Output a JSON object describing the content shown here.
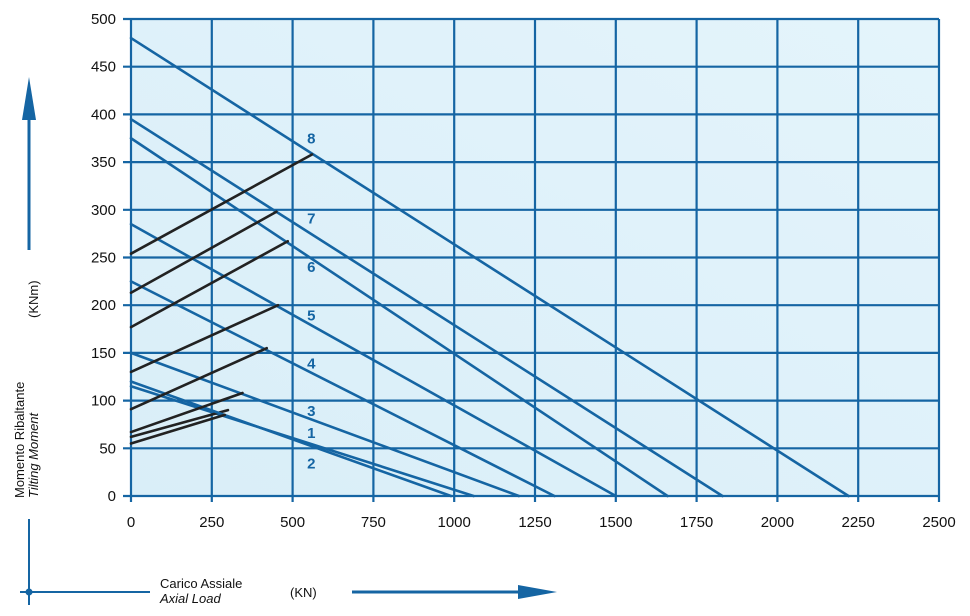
{
  "chart_data": {
    "type": "line",
    "title": "",
    "y_label_it": "Momento Ribaltante",
    "y_label_en": "Tilting Moment",
    "y_unit": "(KNm)",
    "x_label_it": "Carico Assiale",
    "x_label_en": "Axial Load",
    "x_unit": "(KN)",
    "xlim": [
      0,
      2500
    ],
    "ylim": [
      0,
      500
    ],
    "x_ticks": [
      0,
      250,
      500,
      750,
      1000,
      1250,
      1500,
      1750,
      2000,
      2250,
      2500
    ],
    "y_ticks": [
      0,
      50,
      100,
      150,
      200,
      250,
      300,
      350,
      400,
      450,
      500
    ],
    "grid": true,
    "colors": {
      "plot_bg": "#dff1f9",
      "line_blue": "#1565a3",
      "line_dark": "#222222",
      "axis_text": "#111111",
      "arrow": "#1565a3",
      "curve_label": "#1565a3"
    },
    "series_note": "each numbered curve: blue static limit line (y0 at x=0 to x-intercept) and dark operating line",
    "series": [
      {
        "name": "1",
        "blue": [
          [
            0,
            115
          ],
          [
            1060,
            0
          ]
        ],
        "dark": [
          [
            0,
            62
          ],
          [
            300,
            90
          ]
        ]
      },
      {
        "name": "2",
        "blue": [
          [
            0,
            120
          ],
          [
            990,
            0
          ]
        ],
        "dark": [
          [
            0,
            55
          ],
          [
            290,
            85
          ]
        ]
      },
      {
        "name": "3",
        "blue": [
          [
            0,
            150
          ],
          [
            1200,
            0
          ]
        ],
        "dark": [
          [
            0,
            67
          ],
          [
            345,
            108
          ]
        ]
      },
      {
        "name": "4",
        "blue": [
          [
            0,
            225
          ],
          [
            1310,
            0
          ]
        ],
        "dark": [
          [
            0,
            91
          ],
          [
            420,
            155
          ]
        ]
      },
      {
        "name": "5",
        "blue": [
          [
            0,
            285
          ],
          [
            1500,
            0
          ]
        ],
        "dark": [
          [
            0,
            130
          ],
          [
            455,
            200
          ]
        ]
      },
      {
        "name": "6",
        "blue": [
          [
            0,
            375
          ],
          [
            1660,
            0
          ]
        ],
        "dark": [
          [
            0,
            177
          ],
          [
            485,
            267
          ]
        ]
      },
      {
        "name": "7",
        "blue": [
          [
            0,
            395
          ],
          [
            1830,
            0
          ]
        ],
        "dark": [
          [
            0,
            213
          ],
          [
            450,
            298
          ]
        ]
      },
      {
        "name": "8",
        "blue": [
          [
            0,
            480
          ],
          [
            2220,
            0
          ]
        ],
        "dark": [
          [
            0,
            254
          ],
          [
            560,
            358
          ]
        ]
      }
    ],
    "curve_labels": [
      {
        "text": "8",
        "x": 545,
        "y": 375
      },
      {
        "text": "7",
        "x": 545,
        "y": 291
      },
      {
        "text": "6",
        "x": 545,
        "y": 240
      },
      {
        "text": "5",
        "x": 545,
        "y": 189
      },
      {
        "text": "4",
        "x": 545,
        "y": 139
      },
      {
        "text": "3",
        "x": 545,
        "y": 89
      },
      {
        "text": "1",
        "x": 545,
        "y": 66
      },
      {
        "text": "2",
        "x": 545,
        "y": 34
      }
    ]
  }
}
